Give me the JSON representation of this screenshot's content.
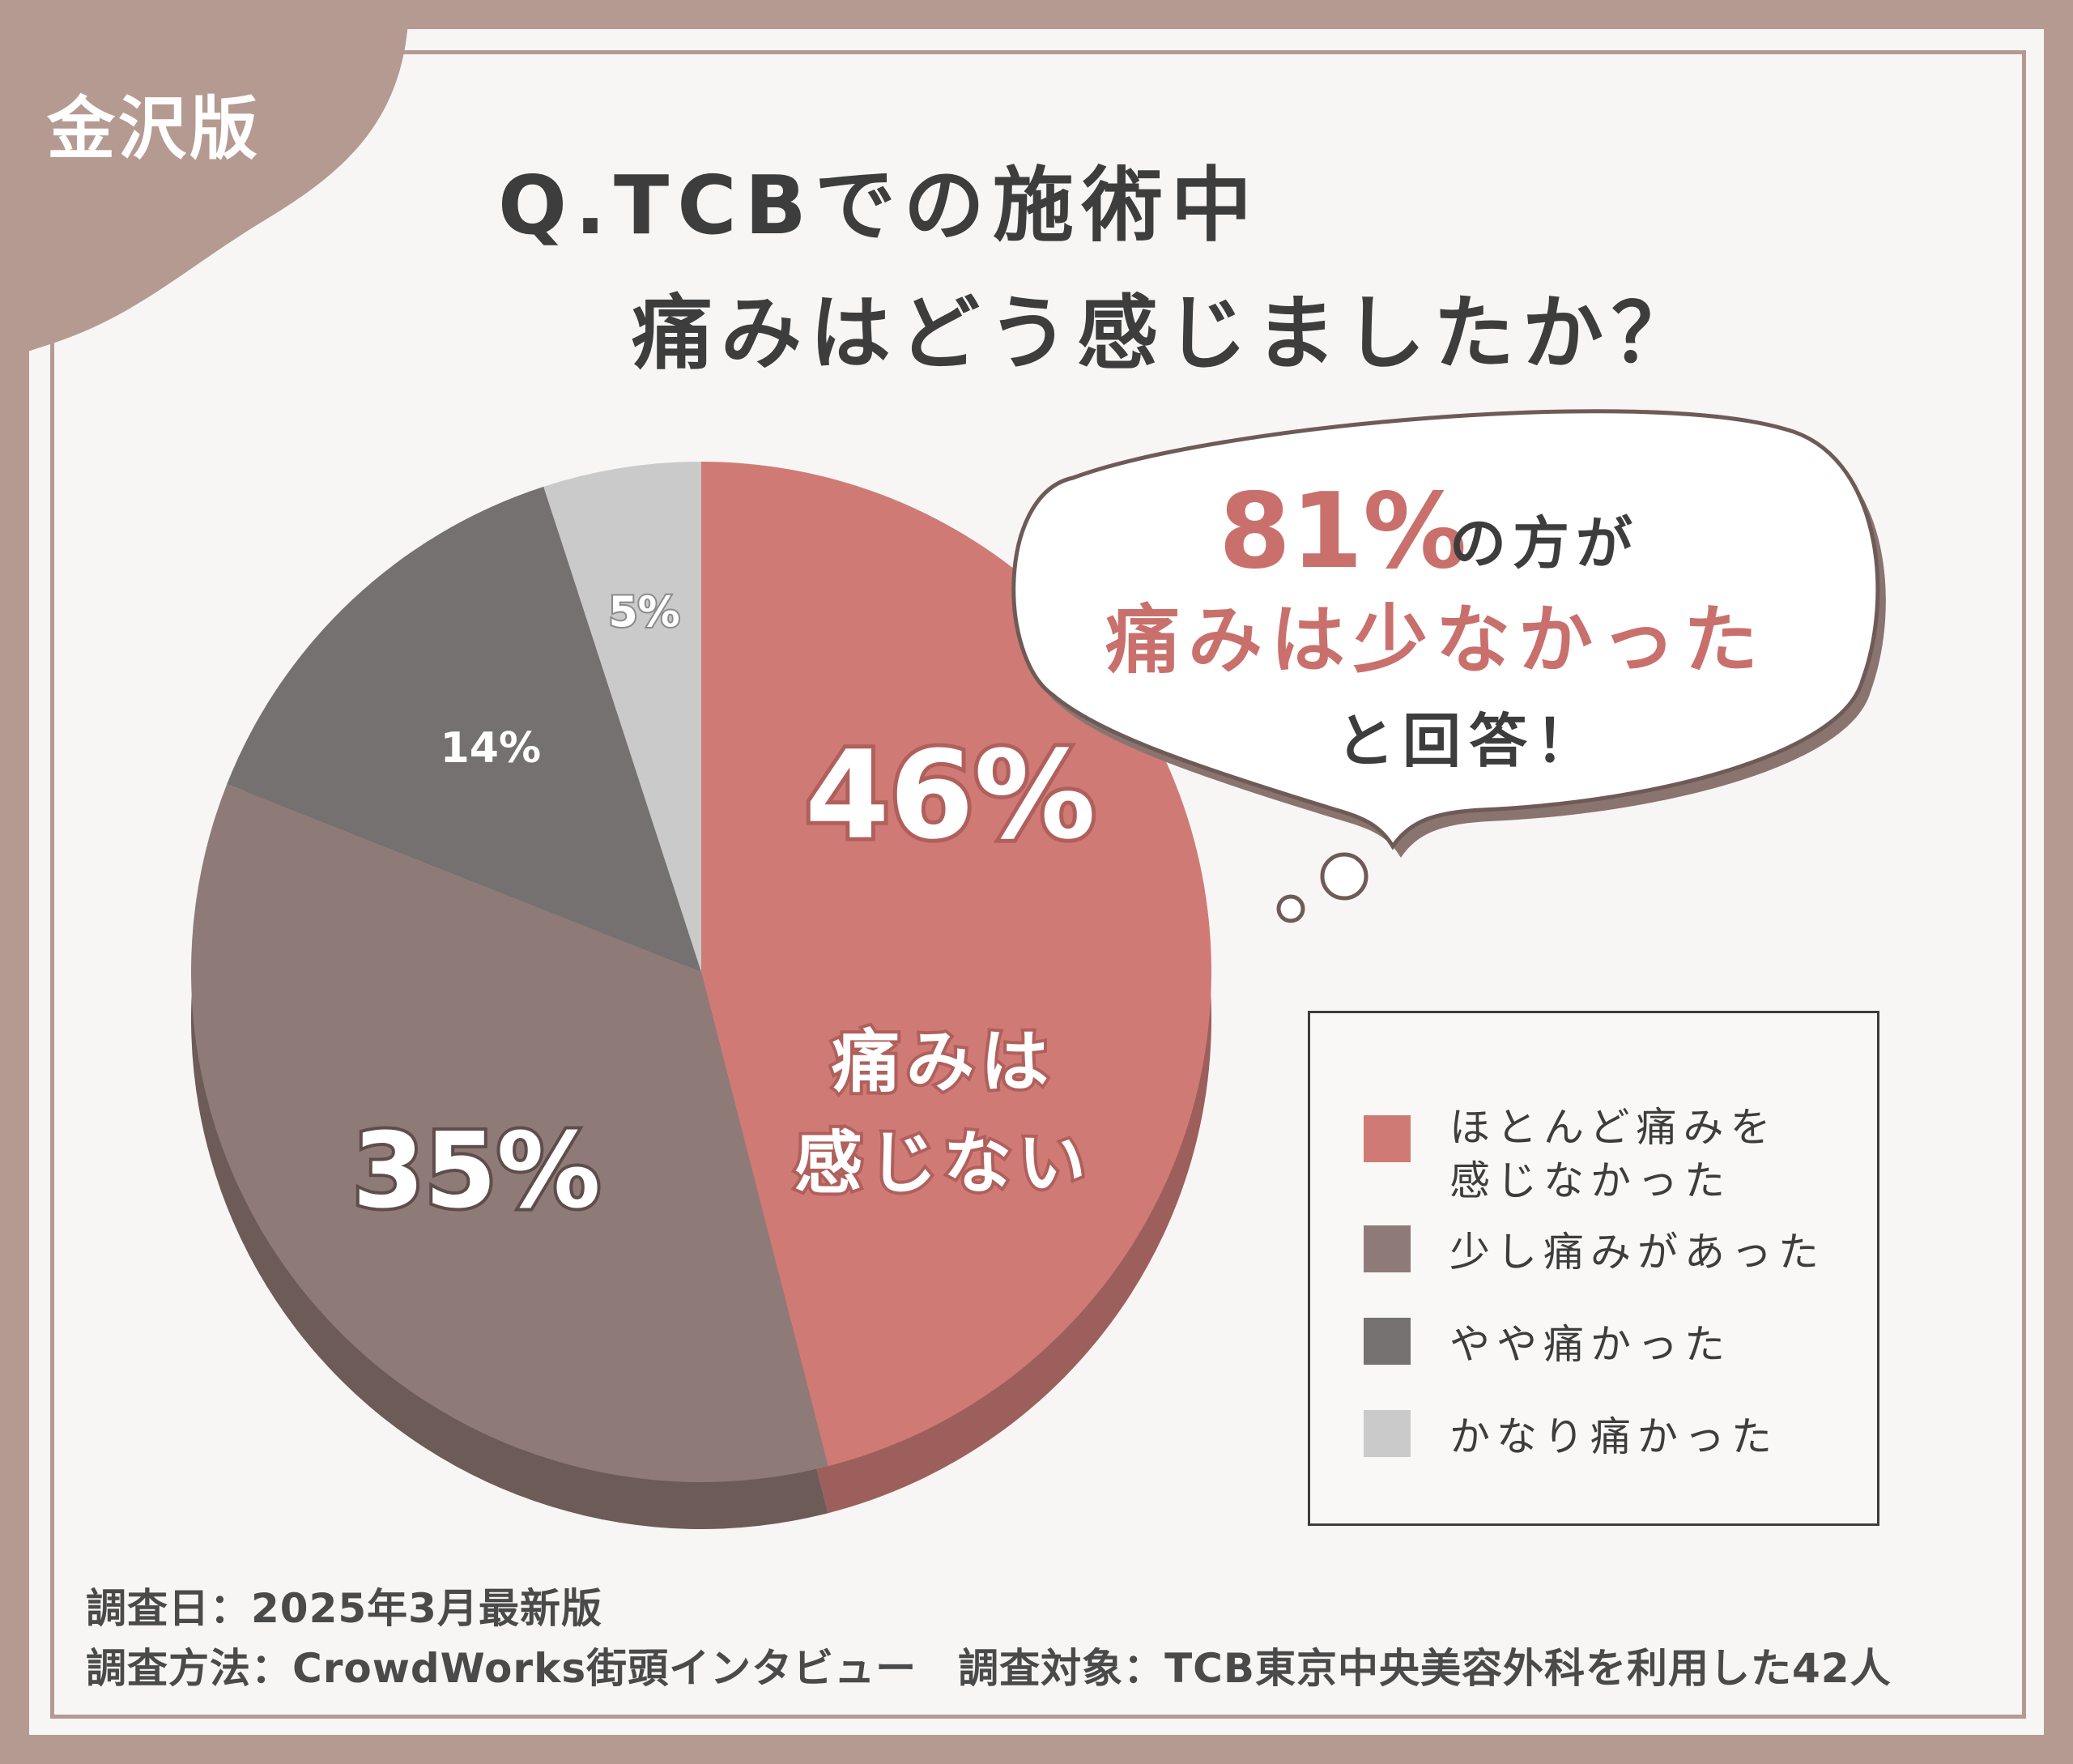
{
  "badge": "金沢版",
  "title": {
    "line1": "Q.TCBでの施術中",
    "line2": "痛みはどう感じましたか？"
  },
  "callout": {
    "highlight": "81%",
    "line1_rest": "の方が",
    "line2": "痛みは少なかった",
    "line3": "と回答！"
  },
  "chart_data": {
    "type": "pie",
    "categories": [
      "ほとんど痛みを感じなかった",
      "少し痛みがあった",
      "やや痛かった",
      "かなり痛かった"
    ],
    "values": [
      46,
      35,
      14,
      5
    ],
    "colors": [
      "#d07a76",
      "#8e7b78",
      "#757170",
      "#cacaca"
    ],
    "data_labels": [
      "46%",
      "35%",
      "14%",
      "5%"
    ],
    "highlight_label": [
      "痛みは",
      "感じない"
    ],
    "legend": {
      "position": "right",
      "items": [
        "ほとんど痛みを\n感じなかった",
        "少し痛みがあった",
        "やや痛かった",
        "かなり痛かった"
      ]
    }
  },
  "footer": {
    "line1": "調査日：2025年3月最新版",
    "line2": "調査方法：CrowdWorks街頭インタビュー　調査対象：TCB東京中央美容外科を利用した42人"
  }
}
